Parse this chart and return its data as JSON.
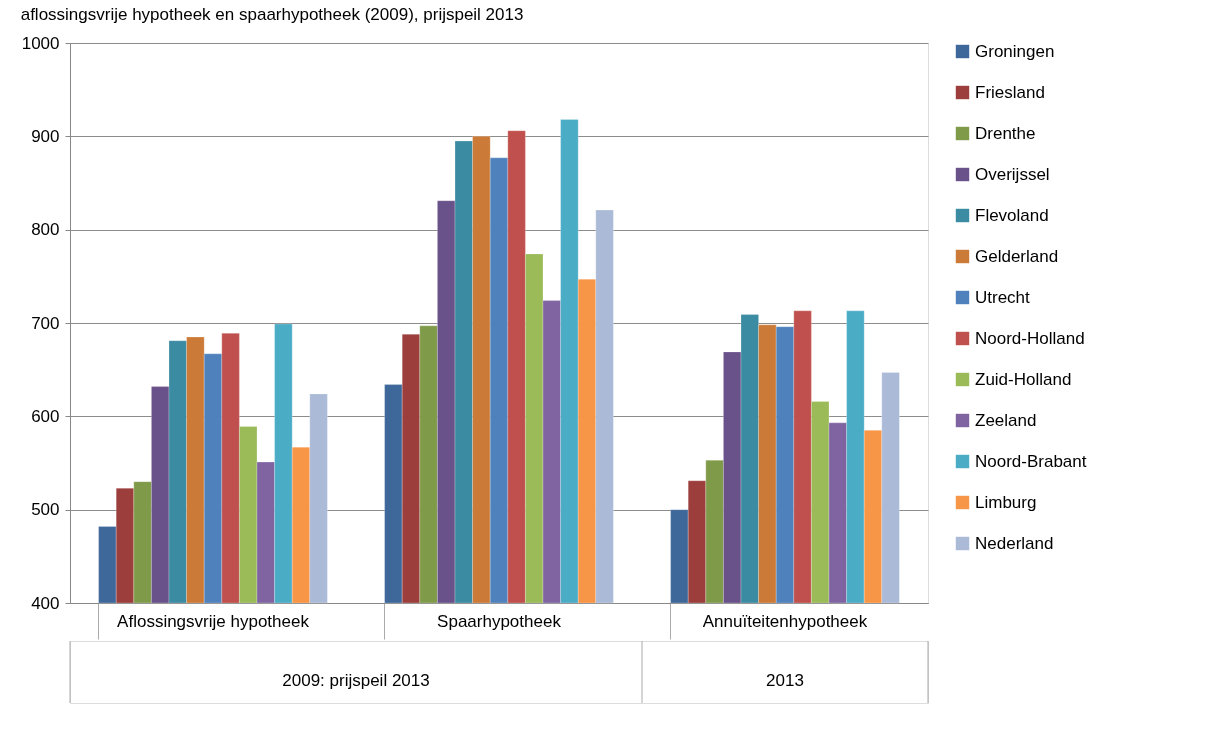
{
  "chart_data": {
    "type": "bar",
    "title": "aflossingsvrije hypotheek en spaarhypotheek (2009), prijspeil 2013",
    "categories": [
      "Aflossingsvrije hypotheek",
      "Spaarhypotheek",
      "Annuïteitenhypotheek"
    ],
    "series": [
      {
        "name": "Groningen",
        "color": "#3e6899",
        "values": [
          482,
          634,
          500
        ]
      },
      {
        "name": "Friesland",
        "color": "#9c3f3c",
        "values": [
          523,
          688,
          531
        ]
      },
      {
        "name": "Drenthe",
        "color": "#7f9a48",
        "values": [
          530,
          697,
          553
        ]
      },
      {
        "name": "Overijssel",
        "color": "#69518a",
        "values": [
          632,
          831,
          669
        ]
      },
      {
        "name": "Flevoland",
        "color": "#3b8ba3",
        "values": [
          681,
          895,
          709
        ]
      },
      {
        "name": "Gelderland",
        "color": "#cb7a37",
        "values": [
          685,
          900,
          698
        ]
      },
      {
        "name": "Utrecht",
        "color": "#4f81bd",
        "values": [
          667,
          877,
          696
        ]
      },
      {
        "name": "Noord-Holland",
        "color": "#c0504d",
        "values": [
          689,
          906,
          713
        ]
      },
      {
        "name": "Zuid-Holland",
        "color": "#9bbb59",
        "values": [
          589,
          774,
          616
        ]
      },
      {
        "name": "Zeeland",
        "color": "#8064a2",
        "values": [
          551,
          724,
          593
        ]
      },
      {
        "name": "Noord-Brabant",
        "color": "#4bacc6",
        "values": [
          699,
          918,
          713
        ]
      },
      {
        "name": "Limburg",
        "color": "#f79646",
        "values": [
          567,
          747,
          585
        ]
      },
      {
        "name": "Nederland",
        "color": "#aabad7",
        "values": [
          624,
          821,
          647
        ]
      }
    ],
    "ylim": [
      400,
      1000
    ],
    "yticks": [
      400,
      500,
      600,
      700,
      800,
      900,
      1000
    ],
    "grid": "y",
    "legend": "right",
    "annotations": [
      "2009: prijspeil 2013",
      "2013"
    ]
  }
}
